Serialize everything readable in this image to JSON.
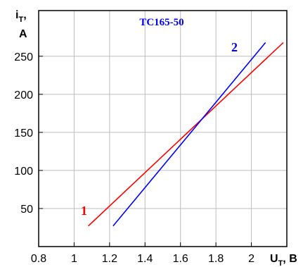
{
  "chart_data": {
    "type": "line",
    "title": "TC165-50",
    "title_color": "#0000ff",
    "ylabel": {
      "main": "i",
      "sub": "T",
      "suffix": ",",
      "unit": "A"
    },
    "xlabel": {
      "main": "U",
      "sub": "T",
      "suffix": ", B"
    },
    "xlim": [
      0.8,
      2.2
    ],
    "ylim": [
      0,
      310
    ],
    "xticks": [
      0.8,
      1,
      1.2,
      1.4,
      1.6,
      1.8,
      2
    ],
    "xtick_labels": [
      "0.8",
      "1",
      "1.2",
      "1.4",
      "1.6",
      "1.8",
      "2"
    ],
    "yticks": [
      50,
      100,
      150,
      200,
      250
    ],
    "ytick_labels": [
      "50",
      "100",
      "150",
      "200",
      "250"
    ],
    "grid": true,
    "series": [
      {
        "name": "1",
        "color": "#ff0000",
        "x": [
          1.08,
          2.18
        ],
        "y": [
          27,
          268
        ]
      },
      {
        "name": "2",
        "color": "#0000ff",
        "x": [
          1.22,
          2.08
        ],
        "y": [
          27,
          268
        ]
      }
    ]
  }
}
